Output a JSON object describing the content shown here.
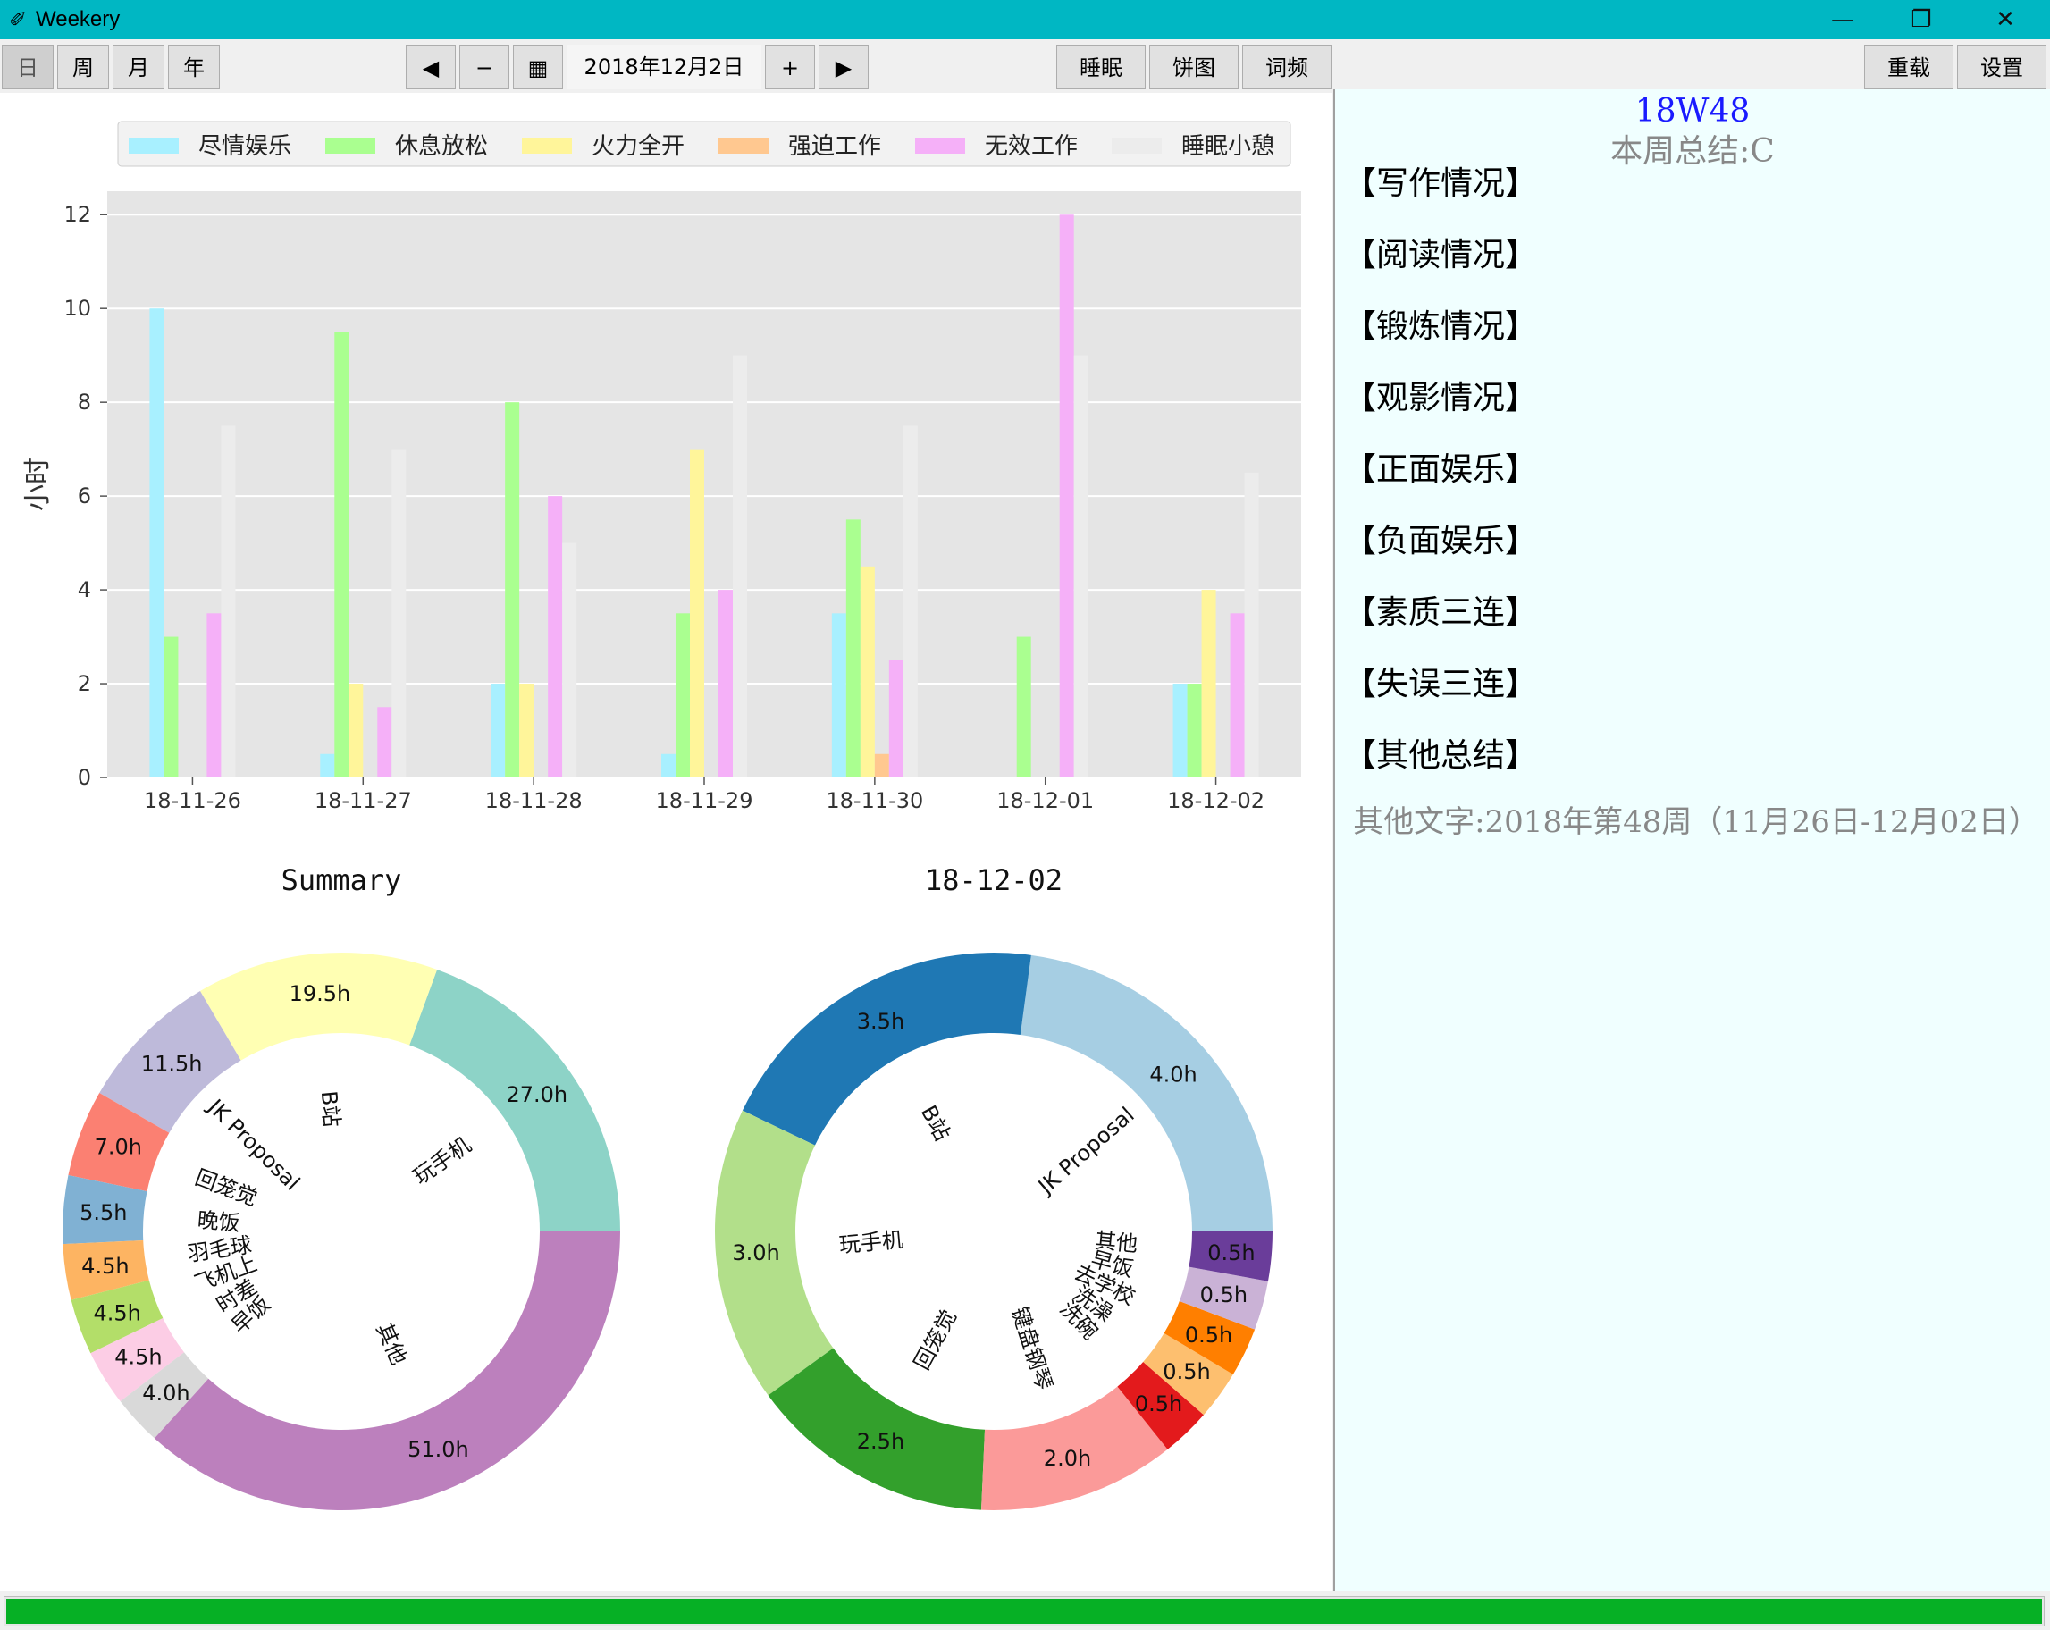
{
  "window": {
    "title": "Weekery",
    "icon": "feather-icon",
    "controls": {
      "minimize": "—",
      "restore": "❐",
      "close": "✕"
    }
  },
  "toolbar": {
    "view_day": "日",
    "view_week": "周",
    "view_month": "月",
    "view_year": "年",
    "active_view": "日",
    "prev": "◀",
    "minus": "−",
    "calendar_icon": "calendar-icon",
    "calendar_glyph": "▦",
    "date": "2018年12月2日",
    "plus": "+",
    "next": "▶",
    "sleep": "睡眠",
    "pie": "饼图",
    "wordfreq": "词频",
    "reload": "重载",
    "settings": "设置"
  },
  "chart_data": [
    {
      "type": "bar",
      "ylabel": "小时",
      "ylim": [
        0,
        12.5
      ],
      "yticks": [
        0,
        2,
        4,
        6,
        8,
        10,
        12
      ],
      "grid": true,
      "legend_position": "top",
      "categories": [
        "18-11-26",
        "18-11-27",
        "18-11-28",
        "18-11-29",
        "18-11-30",
        "18-12-01",
        "18-12-02"
      ],
      "series": [
        {
          "name": "尽情娱乐",
          "color": "#a8f0ff",
          "values": [
            10,
            0.5,
            2,
            0.5,
            3.5,
            0,
            2
          ]
        },
        {
          "name": "休息放松",
          "color": "#aaff90",
          "values": [
            3,
            9.5,
            8,
            3.5,
            5.5,
            3,
            2
          ]
        },
        {
          "name": "火力全开",
          "color": "#fff59a",
          "values": [
            0,
            2,
            2,
            7,
            4.5,
            0,
            4
          ]
        },
        {
          "name": "强迫工作",
          "color": "#ffc890",
          "values": [
            0,
            0,
            0,
            0,
            0.5,
            0,
            0
          ]
        },
        {
          "name": "无效工作",
          "color": "#f5b0f8",
          "values": [
            3.5,
            1.5,
            6,
            4,
            2.5,
            12,
            3.5
          ]
        },
        {
          "name": "睡眠小憩",
          "color": "#ececec",
          "values": [
            7.5,
            7,
            5,
            9,
            7.5,
            9,
            6.5
          ]
        }
      ]
    },
    {
      "type": "pie",
      "title": "Summary",
      "donut": true,
      "slices": [
        {
          "label": "玩手机",
          "value": 27.0,
          "text": "27.0h",
          "color": "#8dd3c7"
        },
        {
          "label": "B站",
          "value": 19.5,
          "text": "19.5h",
          "color": "#ffffb3"
        },
        {
          "label": "JK Proposal",
          "value": 11.5,
          "text": "11.5h",
          "color": "#bebada"
        },
        {
          "label": "回笼觉",
          "value": 7.0,
          "text": "7.0h",
          "color": "#fb8072"
        },
        {
          "label": "晚饭",
          "value": 5.5,
          "text": "5.5h",
          "color": "#80b1d3"
        },
        {
          "label": "羽毛球",
          "value": 4.5,
          "text": "4.5h",
          "color": "#fdb462"
        },
        {
          "label": "飞机上",
          "value": 4.5,
          "text": "4.5h",
          "color": "#b3de69"
        },
        {
          "label": "时差",
          "value": 4.5,
          "text": "4.5h",
          "color": "#fccde5"
        },
        {
          "label": "早饭",
          "value": 4.0,
          "text": "4.0h",
          "color": "#d9d9d9"
        },
        {
          "label": "其他",
          "value": 51.0,
          "text": "51.0h",
          "color": "#bc80bd"
        }
      ]
    },
    {
      "type": "pie",
      "title": "18-12-02",
      "donut": true,
      "slices": [
        {
          "label": "JK Proposal",
          "value": 4.0,
          "text": "4.0h",
          "color": "#a6cee3"
        },
        {
          "label": "B站",
          "value": 3.5,
          "text": "3.5h",
          "color": "#1f78b4"
        },
        {
          "label": "玩手机",
          "value": 3.0,
          "text": "3.0h",
          "color": "#b2df8a"
        },
        {
          "label": "回笼觉",
          "value": 2.5,
          "text": "2.5h",
          "color": "#33a02c"
        },
        {
          "label": "键盘钢琴",
          "value": 2.0,
          "text": "2.0h",
          "color": "#fb9a99"
        },
        {
          "label": "洗碗",
          "value": 0.5,
          "text": "0.5h",
          "color": "#e31a1c"
        },
        {
          "label": "洗澡",
          "value": 0.5,
          "text": "0.5h",
          "color": "#fdbf6f"
        },
        {
          "label": "去学校",
          "value": 0.5,
          "text": "0.5h",
          "color": "#ff7f00"
        },
        {
          "label": "早饭",
          "value": 0.5,
          "text": "0.5h",
          "color": "#cab2d6"
        },
        {
          "label": "其他",
          "value": 0.5,
          "text": "0.5h",
          "color": "#6a3d9a"
        }
      ]
    }
  ],
  "right_panel": {
    "week_code": "18W48",
    "summary": "本周总结:C",
    "sections": [
      "【写作情况】",
      "【阅读情况】",
      "【锻炼情况】",
      "【观影情况】",
      "【正面娱乐】",
      "【负面娱乐】",
      "【素质三连】",
      "【失误三连】",
      "【其他总结】"
    ],
    "other_text": "其他文字:2018年第48周（11月26日-12月02日）"
  },
  "status": {
    "progress": 1.0,
    "color": "#06b025"
  }
}
